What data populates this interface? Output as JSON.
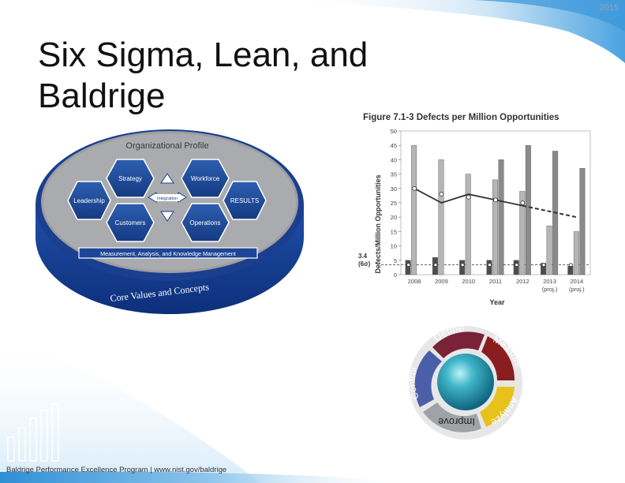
{
  "slide": {
    "year": "2015",
    "title_line1": "Six Sigma, Lean, and",
    "title_line2": "Baldrige",
    "footer": "Baldrige Performance Excellence Program | www.nist.gov/baldrige"
  },
  "baldrige_framework": {
    "profile_label": "Organizational Profile",
    "strategy": "Strategy",
    "workforce": "Workforce",
    "leadership": "Leadership",
    "results": "RESULTS",
    "customers": "Customers",
    "operations": "Operations",
    "integration": "Integration",
    "measurement_bar": "Measurement, Analysis, and Knowledge Management",
    "core_values": "Core Values and Concepts"
  },
  "dmaic": {
    "define": "Define",
    "measure": "Measure",
    "analyze": "Analyze",
    "improve": "Improve",
    "control": "Control",
    "colors": {
      "define": "#7a2238",
      "measure": "#8a1e1e",
      "analyze": "#e8c21c",
      "improve": "#9fa3a6",
      "control": "#4a5fa8"
    }
  },
  "chart_data": {
    "type": "bar",
    "title": "Figure 7.1-3  Defects per Million Opportunities",
    "xlabel": "Year",
    "ylabel": "Defects/Million Opportunities",
    "ylim": [
      0,
      50
    ],
    "yticks": [
      0,
      5,
      10,
      15,
      20,
      25,
      30,
      35,
      40,
      45,
      50
    ],
    "categories": [
      "2008",
      "2009",
      "2010",
      "2011",
      "2012",
      "2013",
      "2014"
    ],
    "category_notes": [
      "",
      "",
      "",
      "",
      "",
      "(proj.)",
      "(proj.)"
    ],
    "reference_label_value": "3.4",
    "reference_label_sigma": "(6σ)",
    "reference_value": 3.4,
    "series": [
      {
        "values": [
          5,
          6,
          5,
          5,
          5,
          4,
          3
        ],
        "color": "#4d4d4d"
      },
      {
        "values": [
          45,
          40,
          35,
          33,
          29,
          17,
          15
        ],
        "color": "#b5b5b5"
      },
      {
        "values": [
          0,
          0,
          0,
          40,
          45,
          43,
          37
        ],
        "color": "#8a8a8a"
      }
    ],
    "trend_line": {
      "values": [
        30,
        25,
        28,
        26,
        24,
        22,
        20
      ],
      "solid_until_index": 4
    },
    "marker_points": {
      "values": [
        30,
        28,
        27,
        26,
        25,
        0,
        0
      ]
    }
  }
}
